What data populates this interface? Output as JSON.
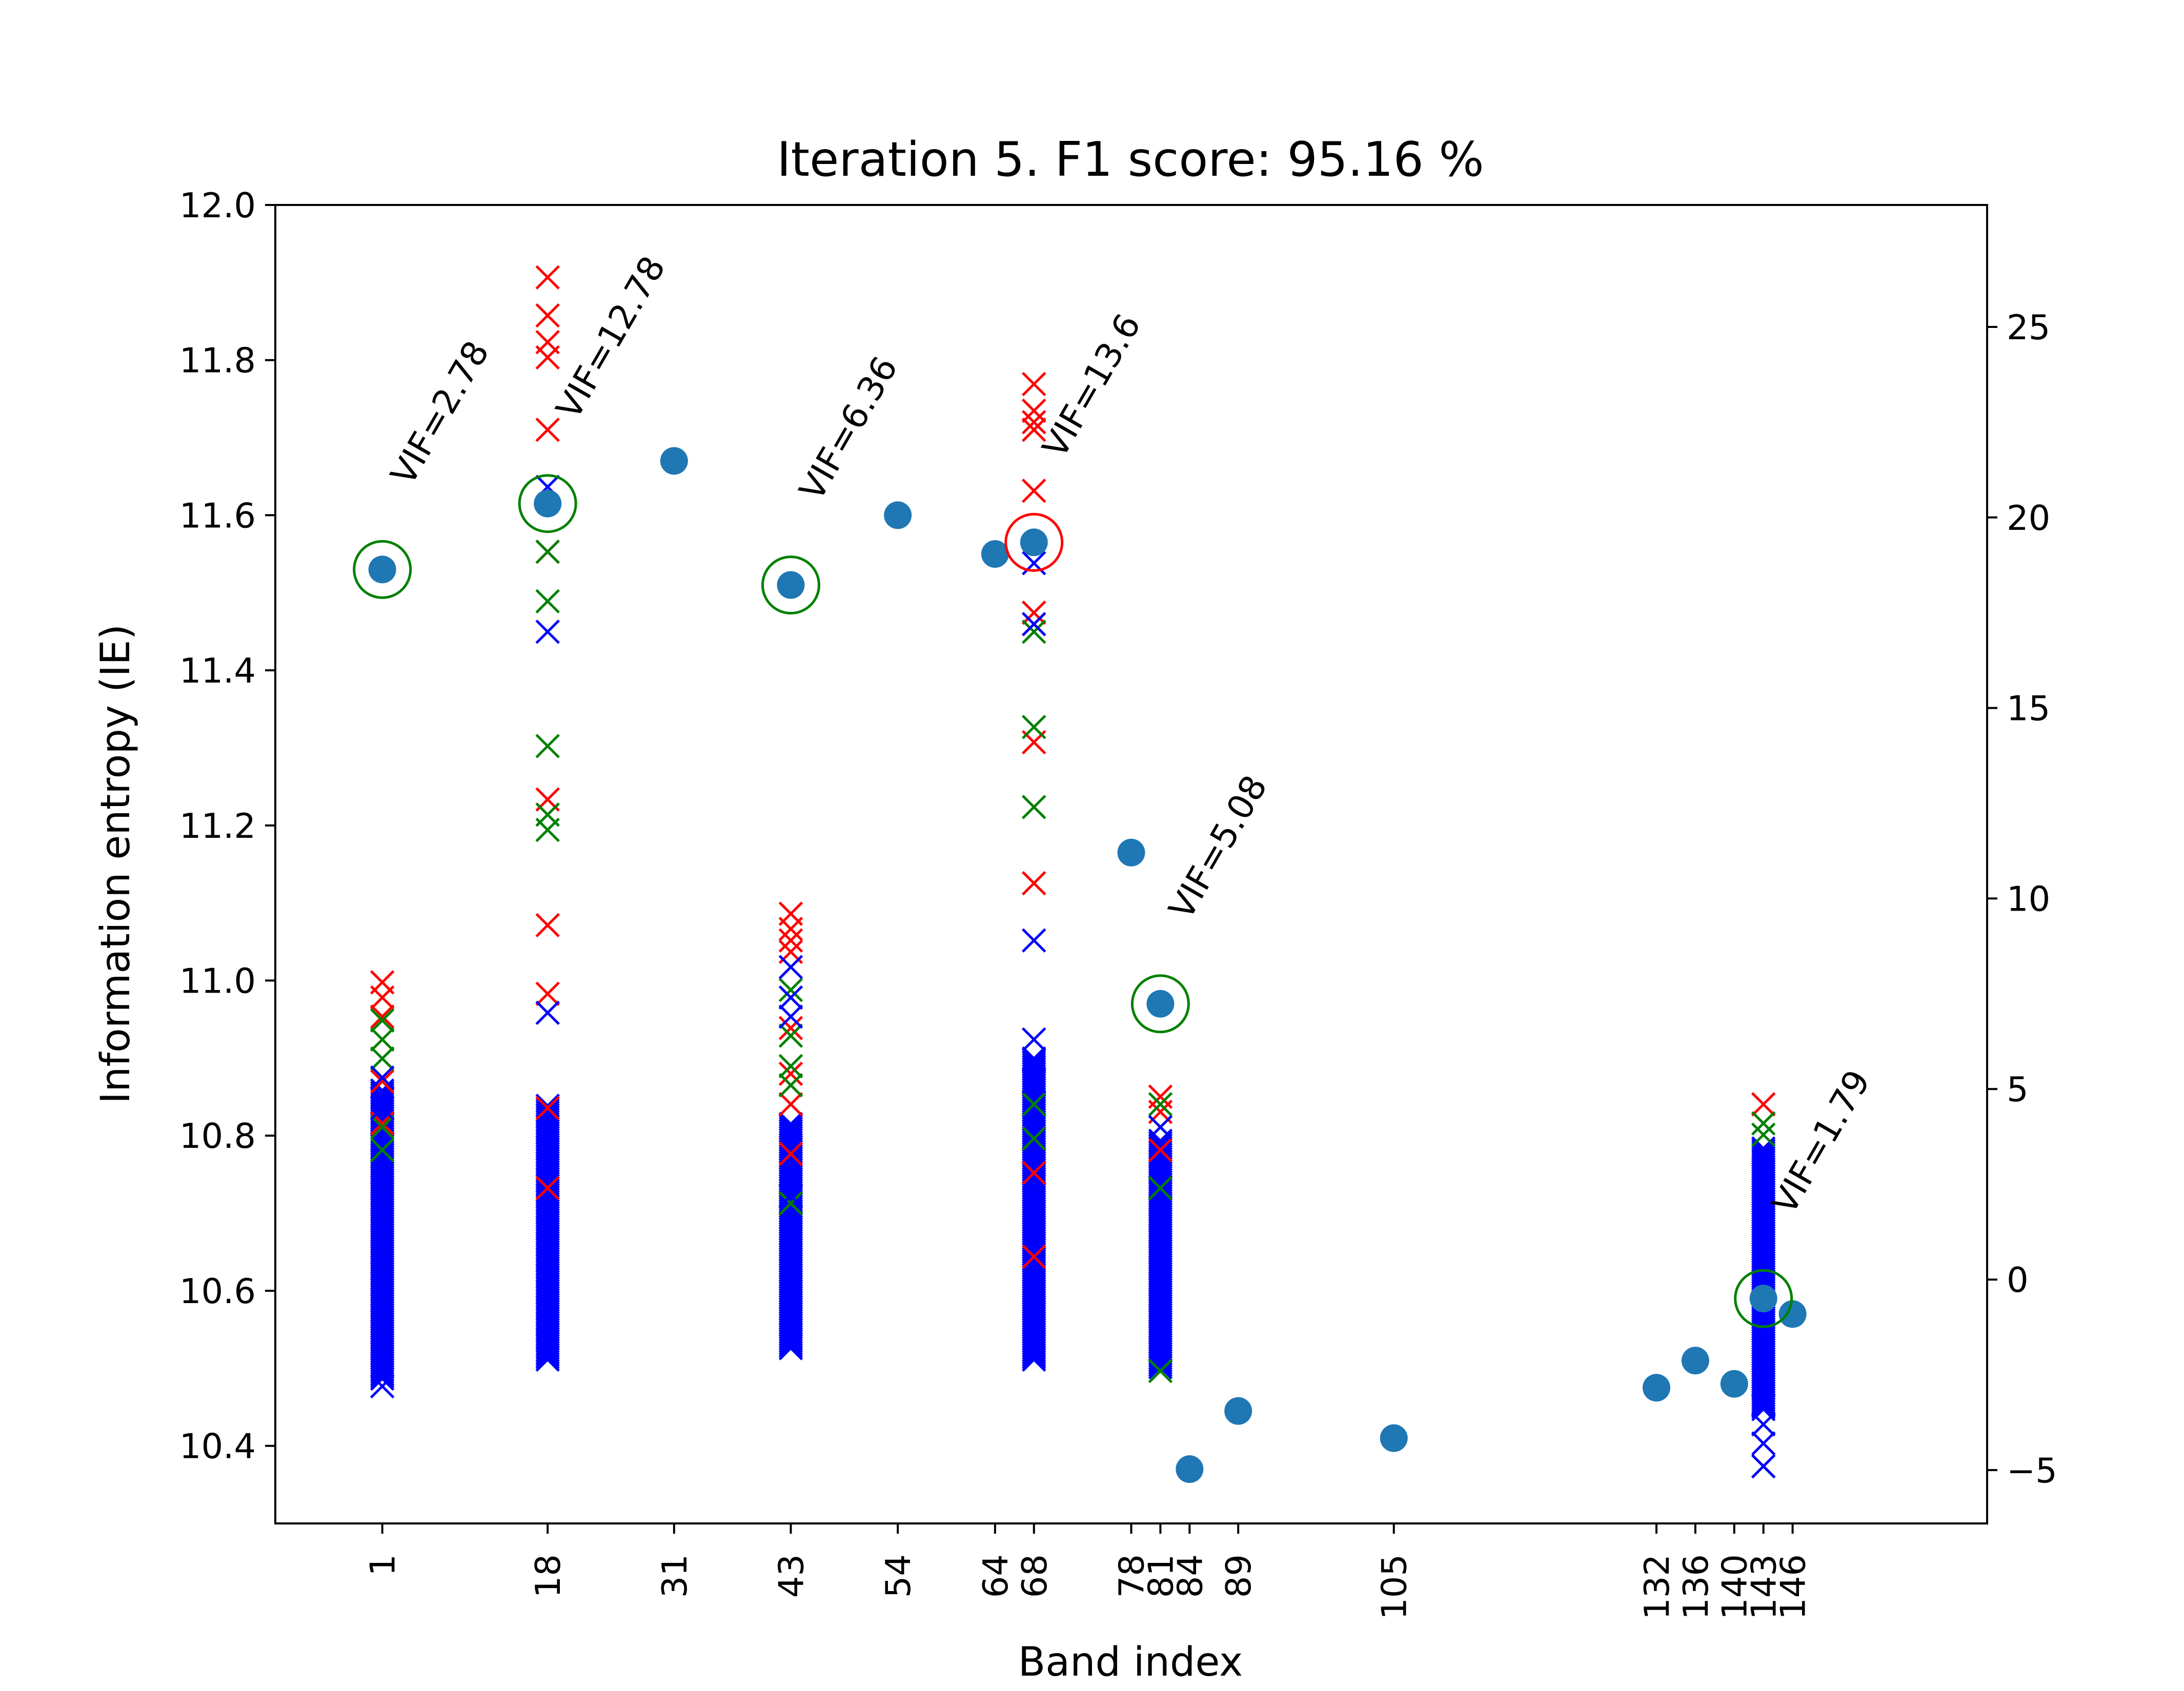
{
  "chart_data": {
    "type": "scatter",
    "title": "Iteration 5. F1 score: 95.16 %",
    "xlabel": "Band index",
    "ylabel": "Information entropy (IE)",
    "ylim": [
      10.3,
      12.0
    ],
    "xlim": [
      -10,
      166
    ],
    "y2lim": [
      -6.4,
      28.2
    ],
    "grid": false,
    "legend": "none",
    "x_ticks": [
      1,
      18,
      31,
      43,
      54,
      64,
      68,
      78,
      81,
      84,
      89,
      105,
      132,
      136,
      140,
      143,
      146
    ],
    "x_tick_labels": [
      "1",
      "18",
      "31",
      "43",
      "54",
      "64",
      "68",
      "78",
      "81",
      "84",
      "89",
      "105",
      "132",
      "136",
      "140",
      "143",
      "146"
    ],
    "y_ticks": [
      10.4,
      10.6,
      10.8,
      11.0,
      11.2,
      11.4,
      11.6,
      11.8,
      12.0
    ],
    "y_tick_labels": [
      "10.4",
      "10.6",
      "10.8",
      "11.0",
      "11.2",
      "11.4",
      "11.6",
      "11.8",
      "12.0"
    ],
    "y2_ticks": [
      -5,
      0,
      5,
      10,
      15,
      20,
      25
    ],
    "y2_tick_labels": [
      "−5",
      "0",
      "5",
      "10",
      "15",
      "20",
      "25"
    ],
    "colors": {
      "band_points": "#1f77b4",
      "red_marker": "#ff0000",
      "green_marker": "#008000",
      "blue_marker": "#0000ff",
      "selected_circle": "#008000",
      "rejected_circle": "#ff0000"
    },
    "series": [
      {
        "marker": "circle",
        "color": "#1f77b4",
        "axis": "left",
        "x": [
          1,
          18,
          31,
          43,
          54,
          64,
          68,
          78,
          81,
          84,
          89,
          105,
          132,
          136,
          140,
          143,
          146
        ],
        "y": [
          11.53,
          11.615,
          11.67,
          11.51,
          11.6,
          11.55,
          11.565,
          11.165,
          10.97,
          10.37,
          10.445,
          10.41,
          10.475,
          10.51,
          10.48,
          10.59,
          10.57
        ]
      },
      {
        "marker": "x",
        "color": "#ff0000",
        "axis": "right",
        "x": [
          1,
          1,
          1,
          1,
          1,
          18,
          18,
          18,
          18,
          18,
          18,
          18,
          18,
          18,
          18,
          18,
          43,
          43,
          43,
          43,
          43,
          43,
          43,
          43,
          43,
          68,
          68,
          68,
          68,
          68,
          68,
          68,
          68,
          68,
          68,
          68,
          81,
          81,
          81,
          143
        ],
        "y": [
          7.8,
          7.4,
          6.9,
          5.2,
          4.1,
          26.3,
          25.3,
          24.6,
          24.2,
          22.3,
          19.1,
          12.6,
          9.3,
          7.5,
          4.5,
          2.4,
          9.6,
          9.2,
          8.9,
          8.6,
          6.6,
          5.4,
          4.6,
          3.3,
          2.0,
          23.5,
          22.8,
          22.5,
          22.3,
          20.7,
          17.5,
          17.2,
          14.1,
          10.4,
          2.8,
          0.6,
          4.8,
          4.4,
          3.4,
          4.6
        ]
      },
      {
        "marker": "x",
        "color": "#008000",
        "axis": "right",
        "x": [
          1,
          1,
          1,
          1,
          1,
          18,
          18,
          18,
          18,
          18,
          43,
          43,
          43,
          43,
          43,
          68,
          68,
          68,
          68,
          68,
          81,
          81,
          81,
          81,
          143,
          143
        ],
        "y": [
          6.8,
          6.3,
          5.8,
          4.0,
          3.4,
          19.1,
          17.8,
          14.0,
          12.2,
          11.8,
          7.6,
          6.4,
          5.6,
          5.1,
          2.0,
          17.0,
          14.5,
          12.4,
          4.6,
          3.7,
          4.6,
          4.0,
          2.4,
          -2.4,
          4.1,
          3.8
        ]
      },
      {
        "marker": "x",
        "color": "#0000ff",
        "axis": "right",
        "x": [
          1,
          1,
          1,
          18,
          18,
          18,
          43,
          43,
          43,
          43,
          68,
          68,
          68,
          68,
          68,
          68,
          81,
          143,
          143,
          143,
          143,
          143
        ],
        "y": [
          5.3,
          4.5,
          -2.8,
          20.8,
          17.0,
          7.0,
          8.2,
          7.4,
          6.9,
          2.2,
          18.8,
          17.2,
          8.9,
          6.3,
          5.8,
          5.2,
          4.0,
          -3.3,
          -3.8,
          -4.3,
          -4.9,
          -4.9
        ]
      }
    ],
    "dense_clusters": [
      {
        "x": 1,
        "color": "#0000ff",
        "axis": "right",
        "y_range": [
          -2.6,
          5.0
        ]
      },
      {
        "x": 18,
        "color": "#0000ff",
        "axis": "right",
        "y_range": [
          -2.1,
          4.6
        ]
      },
      {
        "x": 43,
        "color": "#0000ff",
        "axis": "right",
        "y_range": [
          -1.8,
          4.1
        ]
      },
      {
        "x": 68,
        "color": "#0000ff",
        "axis": "right",
        "y_range": [
          -2.1,
          5.8
        ]
      },
      {
        "x": 81,
        "color": "#0000ff",
        "axis": "right",
        "y_range": [
          -2.3,
          3.7
        ]
      },
      {
        "x": 143,
        "color": "#0000ff",
        "axis": "right",
        "y_range": [
          -3.4,
          3.5
        ]
      }
    ],
    "highlight_circles": [
      {
        "x": 1,
        "y": 11.53,
        "color": "#008000"
      },
      {
        "x": 18,
        "y": 11.615,
        "color": "#008000"
      },
      {
        "x": 43,
        "y": 11.51,
        "color": "#008000"
      },
      {
        "x": 68,
        "y": 11.565,
        "color": "#ff0000"
      },
      {
        "x": 81,
        "y": 10.97,
        "color": "#008000"
      },
      {
        "x": 143,
        "y": 10.59,
        "color": "#008000"
      }
    ],
    "annotations": [
      {
        "text": "VIF=2.78",
        "x": 1,
        "y": 11.53
      },
      {
        "text": "VIF=12.78",
        "x": 18,
        "y": 11.615
      },
      {
        "text": "VIF=6.36",
        "x": 43,
        "y": 11.51
      },
      {
        "text": "VIF=13.6",
        "x": 68,
        "y": 11.565
      },
      {
        "text": "VIF=5.08",
        "x": 81,
        "y": 10.97
      },
      {
        "text": "VIF=1.79",
        "x": 143,
        "y": 10.59
      }
    ]
  }
}
